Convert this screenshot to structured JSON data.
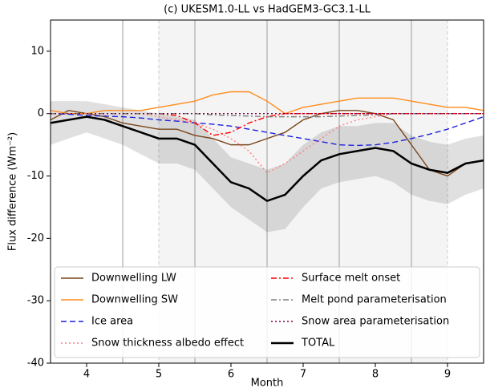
{
  "chart_data": {
    "type": "line",
    "title": "(c) UKESM1.0-LL vs HadGEM3-GC3.1-LL",
    "xlabel": "Month",
    "ylabel": "Flux difference (Wm⁻²)",
    "x": [
      3.5,
      3.75,
      4,
      4.25,
      4.5,
      4.75,
      5,
      5.25,
      5.5,
      5.75,
      6,
      6.25,
      6.5,
      6.75,
      7,
      7.25,
      7.5,
      7.75,
      8,
      8.25,
      8.5,
      8.75,
      9,
      9.25,
      9.5
    ],
    "xlim": [
      3.5,
      9.5
    ],
    "xticks": [
      4,
      5,
      6,
      7,
      8,
      9
    ],
    "ylim": [
      -40,
      15
    ],
    "yticks": [
      -40,
      -30,
      -20,
      -10,
      0,
      10
    ],
    "vlines_solid": [
      4.5,
      5.5,
      6.5,
      7.5,
      8.5
    ],
    "vlines_dashed": [
      5,
      9
    ],
    "shaded_span": [
      5,
      9
    ],
    "series": [
      {
        "name": "Downwelling LW",
        "color": "#7a461c",
        "dash": "solid",
        "values": [
          -1,
          0.5,
          0,
          -0.5,
          -1.5,
          -2,
          -2.5,
          -2.5,
          -3.5,
          -4,
          -5,
          -5,
          -4,
          -3,
          -1,
          0,
          0.5,
          0.5,
          0,
          -1,
          -5,
          -9,
          -10,
          -8,
          -7.5
        ]
      },
      {
        "name": "Downwelling SW",
        "color": "#ff8c1a",
        "dash": "solid",
        "values": [
          0.5,
          0,
          0,
          0.5,
          0.5,
          0.5,
          1,
          1.5,
          2,
          3,
          3.5,
          3.5,
          2,
          0,
          1,
          1.5,
          2,
          2.5,
          2.5,
          2.5,
          2,
          1.5,
          1,
          1,
          0.5
        ]
      },
      {
        "name": "Ice area",
        "color": "#1f1fdd",
        "dash": "dashed",
        "values": [
          0,
          -0.1,
          -0.3,
          -0.4,
          -0.5,
          -0.7,
          -1,
          -1.2,
          -1.5,
          -1.7,
          -2,
          -2.5,
          -3,
          -3.5,
          -4,
          -4.5,
          -5,
          -5.1,
          -5,
          -4.6,
          -4,
          -3.3,
          -2.5,
          -1.5,
          -0.5
        ]
      },
      {
        "name": "Snow thickness albedo effect",
        "color": "#ff7f7f",
        "dash": "dotted",
        "values": [
          0,
          0,
          0,
          0,
          0,
          0,
          -0.5,
          -1,
          -1.5,
          -2.5,
          -4,
          -6,
          -9.5,
          -8,
          -6,
          -4,
          -2,
          -1,
          -0.5,
          0,
          0,
          0,
          0,
          0,
          0
        ]
      },
      {
        "name": "Surface melt onset",
        "color": "#ff0000",
        "dash": "dashdot",
        "values": [
          0,
          0,
          0,
          0,
          0,
          0,
          0,
          -0.3,
          -1.5,
          -3.5,
          -3,
          -1.5,
          -0.5,
          0,
          0,
          0,
          0,
          0,
          0,
          0,
          0,
          0,
          0,
          0,
          0
        ]
      },
      {
        "name": "Melt pond parameterisation",
        "color": "#808080",
        "dash": "dashdot",
        "values": [
          0,
          0,
          0,
          0,
          0,
          0,
          0,
          0,
          0,
          -0.2,
          -0.3,
          -0.4,
          -0.5,
          -0.5,
          -0.5,
          -0.5,
          -0.4,
          -0.3,
          -0.2,
          0,
          0,
          0,
          0,
          0,
          0
        ]
      },
      {
        "name": "Snow area parameterisation",
        "color": "#800040",
        "dash": "dotted",
        "values": [
          0,
          0,
          0,
          0,
          0,
          0,
          0,
          0,
          0,
          0,
          0,
          0,
          0,
          0,
          0,
          0,
          0,
          0,
          0,
          0,
          0,
          0,
          0,
          0,
          0
        ]
      },
      {
        "name": "TOTAL",
        "color": "#000000",
        "dash": "solid",
        "width": 2.5,
        "values": [
          -1.5,
          -1,
          -0.5,
          -1,
          -2,
          -3,
          -4,
          -4,
          -5,
          -8,
          -11,
          -12,
          -14,
          -13,
          -10,
          -7.5,
          -6.5,
          -6,
          -5.5,
          -6,
          -8,
          -9,
          -9.5,
          -8,
          -7.5
        ],
        "band_lower": [
          -5,
          -4,
          -3,
          -4,
          -5,
          -6.5,
          -8,
          -8,
          -9,
          -12,
          -15,
          -17,
          -19,
          -18.5,
          -15,
          -12,
          -11,
          -10.5,
          -10,
          -11,
          -13,
          -14,
          -14.5,
          -13,
          -12
        ],
        "band_upper": [
          2,
          2,
          2,
          1.5,
          1,
          0.5,
          0,
          -0.5,
          -1,
          -4,
          -7,
          -8,
          -9,
          -8,
          -5,
          -3,
          -2,
          -2,
          -1.5,
          -1.5,
          -3.5,
          -4.5,
          -5,
          -4,
          -3.5
        ]
      }
    ],
    "legend": "lower center"
  }
}
